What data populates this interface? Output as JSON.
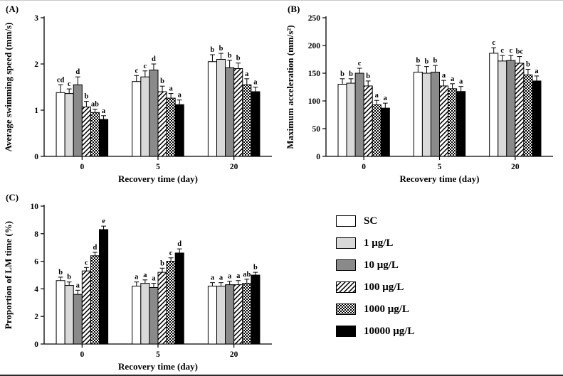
{
  "colors": {
    "white": "#ffffff",
    "light_gray": "#d9d9d9",
    "dark_gray": "#8a8a8a",
    "black": "#000000",
    "axis": "#000000"
  },
  "legend": {
    "position": "figure-bottom-right",
    "items": [
      {
        "label": "SC",
        "pattern": "white"
      },
      {
        "label": "1 μg/L",
        "pattern": "light-gray"
      },
      {
        "label": "10 μg/L",
        "pattern": "dark-gray"
      },
      {
        "label": "100 μg/L",
        "pattern": "diagonal-hatch"
      },
      {
        "label": "1000 μg/L",
        "pattern": "checkerboard"
      },
      {
        "label": "10000 μg/L",
        "pattern": "black"
      }
    ]
  },
  "chart_data": [
    {
      "type": "bar",
      "panel_label": "(A)",
      "title": "",
      "xlabel": "Recovery time (day)",
      "ylabel": "Average swimming speed (mm/s)",
      "ylim": [
        0,
        3
      ],
      "yticks": [
        0,
        1,
        2,
        3
      ],
      "categories": [
        "0",
        "5",
        "20"
      ],
      "grid": false,
      "legend_position": "external",
      "series": [
        {
          "name": "SC",
          "values": [
            1.38,
            1.62,
            2.05
          ],
          "errors": [
            0.17,
            0.13,
            0.15
          ],
          "letters": [
            "cd",
            "c",
            "b"
          ]
        },
        {
          "name": "1 μg/L",
          "values": [
            1.36,
            1.72,
            2.1
          ],
          "errors": [
            0.1,
            0.13,
            0.13
          ],
          "letters": [
            "c",
            "c",
            "b"
          ]
        },
        {
          "name": "10 μg/L",
          "values": [
            1.55,
            1.87,
            1.92
          ],
          "errors": [
            0.17,
            0.13,
            0.16
          ],
          "letters": [
            "d",
            "d",
            "b"
          ]
        },
        {
          "name": "100 μg/L",
          "values": [
            1.07,
            1.4,
            1.9
          ],
          "errors": [
            0.12,
            0.12,
            0.12
          ],
          "letters": [
            "b",
            "b",
            "b"
          ]
        },
        {
          "name": "1000 μg/L",
          "values": [
            0.95,
            1.26,
            1.55
          ],
          "errors": [
            0.07,
            0.1,
            0.13
          ],
          "letters": [
            "ab",
            "a",
            "a"
          ]
        },
        {
          "name": "10000 μg/L",
          "values": [
            0.8,
            1.12,
            1.4
          ],
          "errors": [
            0.08,
            0.1,
            0.1
          ],
          "letters": [
            "a",
            "a",
            "a"
          ]
        }
      ]
    },
    {
      "type": "bar",
      "panel_label": "(B)",
      "title": "",
      "xlabel": "Recovery time (day)",
      "ylabel": "Maximum acceleration (mm/s²)",
      "ylim": [
        0,
        250
      ],
      "yticks": [
        0,
        50,
        100,
        150,
        200,
        250
      ],
      "categories": [
        "0",
        "5",
        "20"
      ],
      "grid": false,
      "legend_position": "external",
      "series": [
        {
          "name": "SC",
          "values": [
            130,
            152,
            186
          ],
          "errors": [
            10,
            12,
            10
          ],
          "letters": [
            "b",
            "b",
            "c"
          ]
        },
        {
          "name": "1 μg/L",
          "values": [
            132,
            150,
            172
          ],
          "errors": [
            8,
            12,
            10
          ],
          "letters": [
            "b",
            "b",
            "c"
          ]
        },
        {
          "name": "10 μg/L",
          "values": [
            150,
            152,
            173
          ],
          "errors": [
            9,
            12,
            9
          ],
          "letters": [
            "c",
            "b",
            "c"
          ]
        },
        {
          "name": "100 μg/L",
          "values": [
            127,
            127,
            168
          ],
          "errors": [
            9,
            10,
            12
          ],
          "letters": [
            "b",
            "a",
            "bc"
          ]
        },
        {
          "name": "1000 μg/L",
          "values": [
            93,
            122,
            147
          ],
          "errors": [
            8,
            9,
            10
          ],
          "letters": [
            "a",
            "a",
            "b"
          ]
        },
        {
          "name": "10000 μg/L",
          "values": [
            87,
            117,
            136
          ],
          "errors": [
            9,
            9,
            9
          ],
          "letters": [
            "a",
            "a",
            "a"
          ]
        }
      ]
    },
    {
      "type": "bar",
      "panel_label": "(C)",
      "title": "",
      "xlabel": "Recovery time (day)",
      "ylabel": "Proportion of LM time (%)",
      "ylim": [
        0,
        10
      ],
      "yticks": [
        0,
        2,
        4,
        6,
        8,
        10
      ],
      "categories": [
        "0",
        "5",
        "20"
      ],
      "grid": false,
      "legend_position": "external",
      "series": [
        {
          "name": "SC",
          "values": [
            4.6,
            4.2,
            4.2
          ],
          "errors": [
            0.25,
            0.3,
            0.25
          ],
          "letters": [
            "b",
            "a",
            "a"
          ]
        },
        {
          "name": "1 μg/L",
          "values": [
            4.25,
            4.4,
            4.2
          ],
          "errors": [
            0.25,
            0.25,
            0.25
          ],
          "letters": [
            "b",
            "a",
            "a"
          ]
        },
        {
          "name": "10 μg/L",
          "values": [
            3.6,
            4.1,
            4.3
          ],
          "errors": [
            0.3,
            0.3,
            0.25
          ],
          "letters": [
            "a",
            "a",
            "a"
          ]
        },
        {
          "name": "100 μg/L",
          "values": [
            5.3,
            5.2,
            4.3
          ],
          "errors": [
            0.25,
            0.3,
            0.3
          ],
          "letters": [
            "c",
            "b",
            "a"
          ]
        },
        {
          "name": "1000 μg/L",
          "values": [
            6.4,
            6.0,
            4.4
          ],
          "errors": [
            0.25,
            0.25,
            0.3
          ],
          "letters": [
            "d",
            "c",
            "ab"
          ]
        },
        {
          "name": "10000 μg/L",
          "values": [
            8.3,
            6.6,
            5.0
          ],
          "errors": [
            0.25,
            0.3,
            0.2
          ],
          "letters": [
            "e",
            "d",
            "b"
          ]
        }
      ]
    }
  ]
}
